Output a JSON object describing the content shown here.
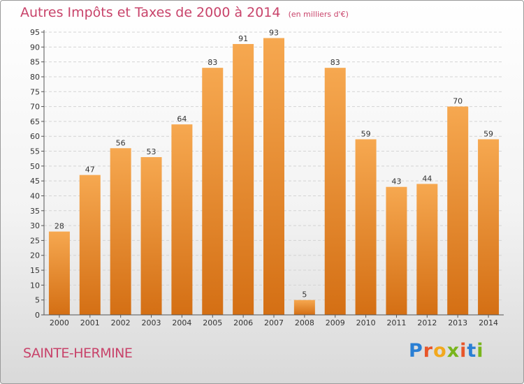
{
  "title": "Autres Impôts et Taxes de 2000 à 2014",
  "unit_note": "(en milliers d'€)",
  "commune": "SAINTE-HERMINE",
  "brand": {
    "text": "Proxiti",
    "letter_colors": [
      "#2a7fd4",
      "#e8562a",
      "#f2a81d",
      "#79b51c",
      "#e8562a",
      "#2a7fd4",
      "#79b51c"
    ]
  },
  "colors": {
    "bar_top": "#f6a850",
    "bar_bottom": "#d46f14",
    "accent": "#c8436a"
  },
  "chart_data": {
    "type": "bar",
    "title": "Autres Impôts et Taxes de 2000 à 2014",
    "subtitle": "(en milliers d'€)",
    "categories": [
      "2000",
      "2001",
      "2002",
      "2003",
      "2004",
      "2005",
      "2006",
      "2007",
      "2008",
      "2009",
      "2010",
      "2011",
      "2012",
      "2013",
      "2014"
    ],
    "values": [
      28,
      47,
      56,
      53,
      64,
      83,
      91,
      93,
      5,
      83,
      59,
      43,
      44,
      70,
      59
    ],
    "xlabel": "",
    "ylabel": "",
    "ylim": [
      0,
      95
    ],
    "yticks": [
      0,
      5,
      10,
      15,
      20,
      25,
      30,
      35,
      40,
      45,
      50,
      55,
      60,
      65,
      70,
      75,
      80,
      85,
      90,
      95
    ],
    "grid": true,
    "legend": "none"
  }
}
